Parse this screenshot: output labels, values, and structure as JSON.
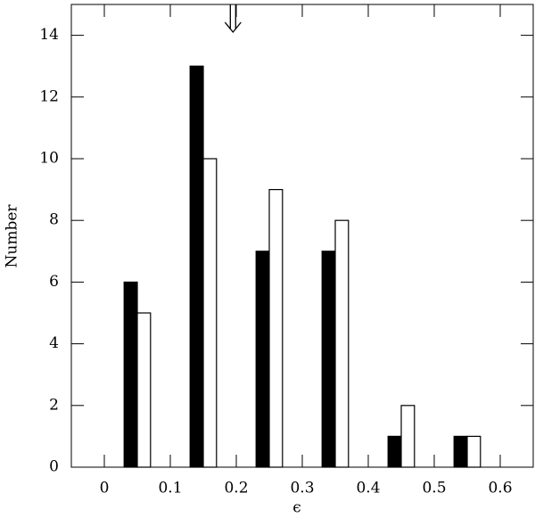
{
  "chart_data": {
    "type": "bar",
    "xlabel": "ϵ",
    "ylabel": "Number",
    "x": [
      0.05,
      0.15,
      0.25,
      0.35,
      0.45,
      0.55
    ],
    "series": [
      {
        "color": "#000000",
        "values": [
          6,
          13,
          7,
          7,
          1,
          1
        ]
      },
      {
        "color": "#ffffff",
        "values": [
          5,
          10,
          9,
          8,
          2,
          1
        ]
      }
    ],
    "arrow_x": 0.195,
    "xlim": [
      -0.05,
      0.65
    ],
    "ylim": [
      0,
      15
    ],
    "xticks": [
      0,
      0.1,
      0.2,
      0.3,
      0.4,
      0.5,
      0.6
    ],
    "yticks": [
      0,
      2,
      4,
      6,
      8,
      10,
      12,
      14
    ],
    "grid": false
  }
}
